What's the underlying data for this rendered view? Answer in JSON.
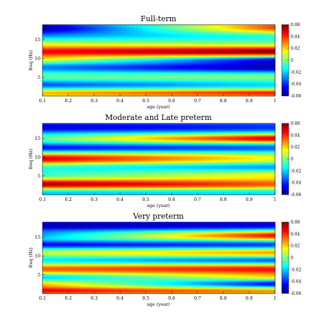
{
  "chart_data": [
    {
      "type": "heatmap",
      "title": "Full-term",
      "xlabel": "age (year)",
      "ylabel": "freq (Hz)",
      "xlim": [
        0.1,
        1.0
      ],
      "ylim": [
        0,
        19
      ],
      "xticks": [
        "0.1",
        "0.2",
        "0.3",
        "0.4",
        "0.5",
        "0.6",
        "0.7",
        "0.8",
        "0.9",
        "1"
      ],
      "yticks": [
        "5",
        "10",
        "15"
      ],
      "colorbar": {
        "range": [
          -0.06,
          0.06
        ],
        "ticks": [
          "0.06",
          "0.04",
          "0.02",
          "0",
          "-0.02",
          "-0.04",
          "-0.06"
        ]
      },
      "colormap": "jet",
      "grid": false,
      "bands": [
        {
          "freq": 18.2,
          "width": 1.6,
          "start": -0.055,
          "end": 0.04
        },
        {
          "freq": 16.0,
          "width": 1.5,
          "start": -0.02,
          "end": -0.015
        },
        {
          "freq": 13.8,
          "width": 1.2,
          "start": 0.01,
          "end": 0.0
        },
        {
          "freq": 11.8,
          "width": 1.4,
          "start": 0.045,
          "end": 0.06
        },
        {
          "freq": 9.7,
          "width": 1.1,
          "start": 0.015,
          "end": -0.045
        },
        {
          "freq": 7.6,
          "width": 1.5,
          "start": -0.03,
          "end": -0.055
        },
        {
          "freq": 5.2,
          "width": 1.3,
          "start": 0.0,
          "end": 0.005
        },
        {
          "freq": 3.0,
          "width": 1.3,
          "start": -0.035,
          "end": -0.02
        },
        {
          "freq": 0.8,
          "width": 1.0,
          "start": 0.025,
          "end": 0.045
        }
      ]
    },
    {
      "type": "heatmap",
      "title": "Moderate and Late preterm",
      "xlabel": "age (year)",
      "ylabel": "freq (Hz)",
      "xlim": [
        0.1,
        1.0
      ],
      "ylim": [
        0,
        19
      ],
      "xticks": [
        "0.1",
        "0.2",
        "0.3",
        "0.4",
        "0.5",
        "0.6",
        "0.7",
        "0.8",
        "0.9",
        "1"
      ],
      "yticks": [
        "5",
        "10",
        "15"
      ],
      "colorbar": {
        "range": [
          -0.06,
          0.06
        ],
        "ticks": [
          "0.06",
          "0.04",
          "0.02",
          "0",
          "-0.02",
          "-0.04",
          "-0.06"
        ]
      },
      "colormap": "jet",
      "grid": false,
      "bands": [
        {
          "freq": 18.0,
          "width": 1.8,
          "start": -0.05,
          "end": -0.04
        },
        {
          "freq": 15.0,
          "width": 1.2,
          "start": 0.0,
          "end": 0.055
        },
        {
          "freq": 12.5,
          "width": 1.4,
          "start": -0.045,
          "end": -0.035
        },
        {
          "freq": 9.6,
          "width": 1.6,
          "start": 0.05,
          "end": 0.015
        },
        {
          "freq": 7.4,
          "width": 1.2,
          "start": -0.015,
          "end": -0.03
        },
        {
          "freq": 5.2,
          "width": 1.2,
          "start": -0.01,
          "end": 0.015
        },
        {
          "freq": 2.8,
          "width": 1.4,
          "start": 0.055,
          "end": 0.035
        },
        {
          "freq": 0.6,
          "width": 1.1,
          "start": -0.025,
          "end": -0.02
        }
      ]
    },
    {
      "type": "heatmap",
      "title": "Very preterm",
      "xlabel": "age (year)",
      "ylabel": "freq (Hz)",
      "xlim": [
        0.1,
        1.0
      ],
      "ylim": [
        0,
        19
      ],
      "xticks": [
        "0.1",
        "0.2",
        "0.3",
        "0.4",
        "0.5",
        "0.6",
        "0.7",
        "0.8",
        "0.9",
        "1"
      ],
      "yticks": [
        "5",
        "10",
        "15"
      ],
      "colorbar": {
        "range": [
          -0.06,
          0.06
        ],
        "ticks": [
          "0.06",
          "0.04",
          "0.02",
          "0",
          "-0.02",
          "-0.04",
          "-0.06"
        ]
      },
      "colormap": "jet",
      "grid": false,
      "bands": [
        {
          "freq": 18.2,
          "width": 1.7,
          "start": -0.055,
          "end": -0.05
        },
        {
          "freq": 15.5,
          "width": 1.3,
          "start": -0.02,
          "end": 0.05
        },
        {
          "freq": 13.0,
          "width": 1.2,
          "start": -0.045,
          "end": -0.04
        },
        {
          "freq": 10.8,
          "width": 1.2,
          "start": 0.01,
          "end": 0.03
        },
        {
          "freq": 8.8,
          "width": 1.2,
          "start": -0.02,
          "end": -0.04
        },
        {
          "freq": 6.5,
          "width": 1.5,
          "start": 0.035,
          "end": 0.045
        },
        {
          "freq": 4.3,
          "width": 1.1,
          "start": -0.025,
          "end": 0.015
        },
        {
          "freq": 2.5,
          "width": 1.1,
          "start": 0.02,
          "end": -0.05
        },
        {
          "freq": 0.7,
          "width": 1.1,
          "start": 0.045,
          "end": 0.03
        }
      ]
    }
  ]
}
